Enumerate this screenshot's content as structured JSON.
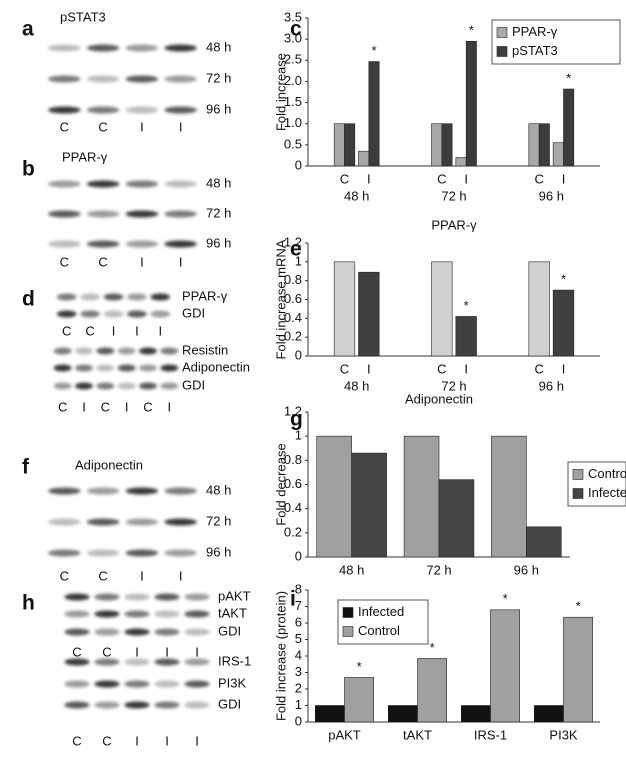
{
  "blots": [
    {
      "panel": "a",
      "title": "pSTAT3",
      "groups": [
        {
          "rows": [
            "48 h",
            "72 h",
            "96 h"
          ],
          "lanes": [
            "C",
            "C",
            "I",
            "I"
          ]
        }
      ]
    },
    {
      "panel": "b",
      "title": "PPAR-γ",
      "groups": [
        {
          "rows": [
            "48 h",
            "72 h",
            "96 h"
          ],
          "lanes": [
            "C",
            "C",
            "I",
            "I"
          ]
        }
      ]
    },
    {
      "panel": "d",
      "groups": [
        {
          "rows": [
            "PPAR-γ",
            "GDI"
          ],
          "lanes": [
            "C",
            "C",
            "I",
            "I",
            "I"
          ]
        },
        {
          "rows": [
            "Resistin",
            "Adiponectin",
            "GDI"
          ],
          "lanes": [
            "C",
            "I",
            "C",
            "I",
            "C",
            "I"
          ]
        }
      ]
    },
    {
      "panel": "f",
      "title": "Adiponectin",
      "groups": [
        {
          "rows": [
            "48 h",
            "72 h",
            "96 h"
          ],
          "lanes": [
            "C",
            "C",
            "I",
            "I"
          ]
        }
      ]
    },
    {
      "panel": "h",
      "groups": [
        {
          "rows": [
            "pAKT",
            "tAKT",
            "GDI"
          ],
          "lanes": [
            "C",
            "C",
            "I",
            "I",
            "I"
          ]
        },
        {
          "rows": [
            "IRS-1",
            "PI3K",
            "GDI"
          ],
          "lanes": [
            "C",
            "C",
            "I",
            "I",
            "I"
          ]
        }
      ]
    }
  ],
  "chart_data": [
    {
      "type": "bar",
      "panel": "c",
      "y_label": "Fold increase",
      "categories": [
        "C",
        "I",
        "C",
        "I",
        "C",
        "I"
      ],
      "groups": [
        "48 h",
        "72 h",
        "96 h"
      ],
      "series": [
        {
          "name": "PPAR-γ",
          "color": "#a8a8a8",
          "values": [
            1.0,
            0.35,
            1.0,
            0.2,
            1.0,
            0.55
          ],
          "starred": [
            false,
            false,
            false,
            false,
            false,
            false
          ]
        },
        {
          "name": "pSTAT3",
          "color": "#3c3c3c",
          "values": [
            1.0,
            2.47,
            1.0,
            2.95,
            1.0,
            1.82
          ],
          "starred": [
            false,
            true,
            false,
            true,
            false,
            true
          ]
        }
      ],
      "significance_mark": "*",
      "legend": "top-right",
      "ylim": [
        0,
        3.5
      ],
      "yticks": [
        0,
        0.5,
        {
          "value": 1,
          "label": "1.0"
        },
        1.5,
        {
          "value": 2,
          "label": "2.0"
        },
        2.5,
        {
          "value": 3,
          "label": "3.0"
        },
        3.5
      ]
    },
    {
      "type": "bar",
      "panel": "e",
      "title": "PPAR-γ",
      "y_label": "Fold increase mRNA",
      "categories": [
        "C",
        "I",
        "C",
        "I",
        "C",
        "I"
      ],
      "groups": [
        "48 h",
        "72 h",
        "96 h"
      ],
      "values": [
        1.0,
        0.89,
        1.0,
        0.42,
        1.0,
        0.7
      ],
      "colors": [
        "#d0d0d0",
        "#404040",
        "#d0d0d0",
        "#404040",
        "#d0d0d0",
        "#404040"
      ],
      "starred": [
        false,
        false,
        false,
        true,
        false,
        true
      ],
      "significance_mark": "*",
      "ylim": [
        0,
        1.2
      ],
      "yticks": [
        0,
        0.2,
        0.4,
        0.6,
        0.8,
        1,
        1.2
      ]
    },
    {
      "type": "bar",
      "panel": "g",
      "title": "Adiponectin",
      "y_label": "Fold decrease",
      "categories": [
        "48 h",
        "72 h",
        "96 h"
      ],
      "series": [
        {
          "name": "Control",
          "color": "#a0a0a0",
          "values": [
            1.0,
            1.0,
            1.0
          ]
        },
        {
          "name": "Infected",
          "color": "#454545",
          "values": [
            0.86,
            0.64,
            0.25
          ]
        }
      ],
      "legend": "right",
      "ylim": [
        0,
        1.2
      ],
      "yticks": [
        0,
        0.2,
        0.4,
        0.6,
        0.8,
        1,
        1.2
      ]
    },
    {
      "type": "bar",
      "panel": "i",
      "y_label": "Fold increase (protein)",
      "categories": [
        "pAKT",
        "tAKT",
        "IRS-1",
        "PI3K"
      ],
      "series": [
        {
          "name": "Infected",
          "color": "#111111",
          "values": [
            1.0,
            1.0,
            1.0,
            1.0
          ],
          "starred": [
            false,
            false,
            false,
            false
          ]
        },
        {
          "name": "Control",
          "color": "#a0a0a0",
          "values": [
            2.7,
            3.85,
            6.8,
            6.35
          ],
          "starred": [
            true,
            true,
            true,
            true
          ]
        }
      ],
      "significance_mark": "*",
      "legend": "top-left",
      "ylim": [
        0,
        8
      ],
      "yticks": [
        0,
        1,
        2,
        3,
        4,
        5,
        6,
        7,
        8
      ]
    }
  ]
}
